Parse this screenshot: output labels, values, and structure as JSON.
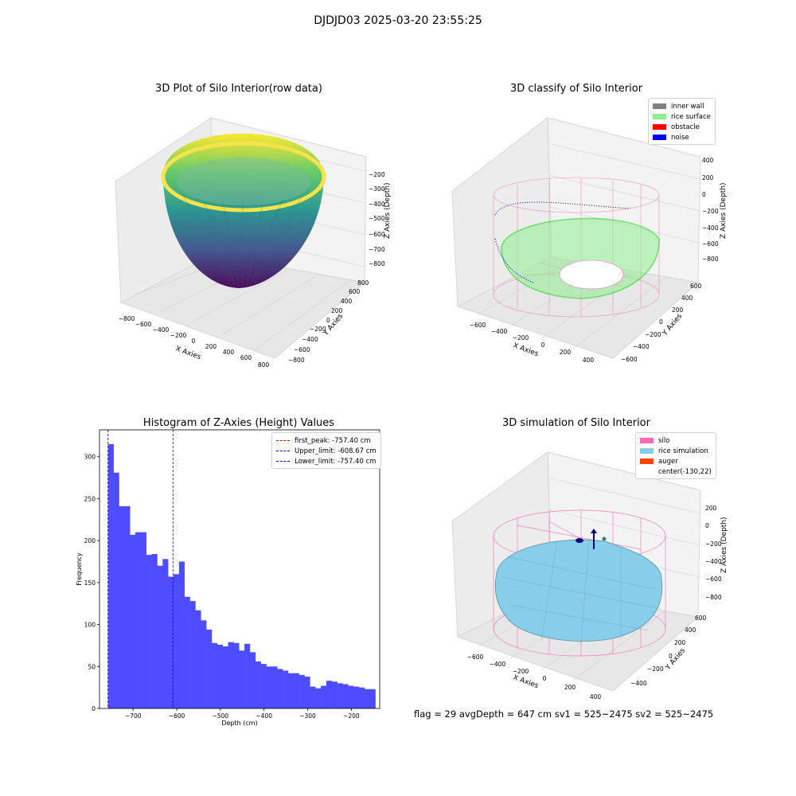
{
  "suptitle": "DJDJD03 2025-03-20 23:55:25",
  "colors": {
    "inner_wall": "#808080",
    "rice_surface": "#90ee90",
    "obstacle": "#ff0000",
    "noise": "#0000ff",
    "silo": "#ff69b4",
    "rice_simulation": "#87ceeb",
    "auger": "#ff4500",
    "histogram_bar": "#4d4dff",
    "first_peak_line": "#ff0000",
    "limit_line": "#0000ff"
  },
  "panels": {
    "raw": {
      "title": "3D Plot of Silo Interior(row data)",
      "x_label": "X Axies",
      "y_label": "Y Axies",
      "z_label": "Z Axies (Depth)",
      "x_ticks": [
        "−800",
        "−600",
        "−400",
        "−200",
        "0",
        "200",
        "400",
        "600",
        "800"
      ],
      "y_ticks": [
        "−800",
        "−600",
        "−400",
        "−200",
        "0",
        "200",
        "400",
        "600",
        "800"
      ],
      "z_ticks": [
        "−200",
        "−300",
        "−400",
        "−500",
        "−600",
        "−700",
        "−800"
      ]
    },
    "classify": {
      "title": "3D classify of Silo Interior",
      "x_label": "X Axies",
      "y_label": "Y Axies",
      "z_label": "Z Axies (Depth)",
      "x_ticks": [
        "−600",
        "−400",
        "−200",
        "0",
        "200",
        "400"
      ],
      "y_ticks": [
        "−600",
        "−400",
        "−200",
        "0",
        "200",
        "400",
        "600"
      ],
      "z_ticks": [
        "400",
        "200",
        "0",
        "−200",
        "−400",
        "−600",
        "−800"
      ],
      "legend": [
        "inner wall",
        "rice surface",
        "obstacle",
        "noise"
      ]
    },
    "histogram": {
      "title": "Histogram of Z-Axies (Height) Values",
      "x_label": "Depth (cm)",
      "y_label": "Frequency",
      "x_ticks": [
        "−700",
        "−600",
        "−500",
        "−400",
        "−300",
        "−200"
      ],
      "y_ticks": [
        "0",
        "50",
        "100",
        "150",
        "200",
        "250",
        "300"
      ],
      "legend": [
        "first_peak: -757.40 cm",
        "Upper_limit: -608.67 cm",
        "Lower_limit: -757.40 cm"
      ]
    },
    "simulation": {
      "title": "3D simulation of Silo Interior",
      "x_label": "X Axies",
      "y_label": "Y Axies",
      "z_label": "Z Axies (Depth)",
      "x_ticks": [
        "−600",
        "−400",
        "−200",
        "0",
        "200",
        "400"
      ],
      "y_ticks": [
        "−400",
        "−200",
        "0",
        "200",
        "400",
        "600"
      ],
      "z_ticks": [
        "200",
        "0",
        "−200",
        "−400",
        "−600",
        "−800"
      ],
      "legend": [
        "silo",
        "rice simulation",
        "auger",
        "center(-130,22)"
      ]
    }
  },
  "status_text": "flag = 29  avgDepth = 647 cm  sv1 = 525~2475  sv2 = 525~2475",
  "chart_data": [
    {
      "type": "scatter",
      "name": "raw-3d",
      "title": "3D Plot of Silo Interior(row data)",
      "xlabel": "X Axies",
      "ylabel": "Y Axies",
      "zlabel": "Z Axies (Depth)",
      "xlim": [
        -800,
        800
      ],
      "ylim": [
        -800,
        800
      ],
      "zlim": [
        -850,
        -150
      ],
      "colormap": "viridis"
    },
    {
      "type": "scatter",
      "name": "classify-3d",
      "title": "3D classify of Silo Interior",
      "xlabel": "X Axies",
      "ylabel": "Y Axies",
      "zlabel": "Z Axies (Depth)",
      "xlim": [
        -700,
        500
      ],
      "ylim": [
        -600,
        700
      ],
      "zlim": [
        -900,
        400
      ],
      "legend": [
        "inner wall",
        "rice surface",
        "obstacle",
        "noise"
      ],
      "legend_position": "top-right"
    },
    {
      "type": "bar",
      "name": "depth-histogram",
      "title": "Histogram of Z-Axies (Height) Values",
      "xlabel": "Depth (cm)",
      "ylabel": "Frequency",
      "xlim": [
        -777,
        -135
      ],
      "ylim": [
        0,
        332
      ],
      "bin_start": -757.4,
      "bin_width": 12.5,
      "values": [
        315,
        281,
        241,
        241,
        207,
        210,
        210,
        183,
        184,
        170,
        178,
        157,
        160,
        175,
        133,
        128,
        117,
        105,
        94,
        78,
        76,
        74,
        79,
        78,
        69,
        77,
        67,
        56,
        53,
        50,
        50,
        47,
        45,
        42,
        42,
        40,
        38,
        26,
        24,
        27,
        33,
        32,
        30,
        29,
        27,
        26,
        25,
        23,
        23
      ],
      "vlines": [
        {
          "label": "first_peak: -757.40 cm",
          "x": -757.4,
          "color": "red",
          "style": "dashed"
        },
        {
          "label": "Upper_limit: -608.67 cm",
          "x": -608.67,
          "color": "blue",
          "style": "dashed"
        },
        {
          "label": "Lower_limit: -757.40 cm",
          "x": -757.4,
          "color": "blue",
          "style": "dashed"
        }
      ],
      "legend_position": "top-right"
    },
    {
      "type": "scatter",
      "name": "simulation-3d",
      "title": "3D simulation of Silo Interior",
      "xlabel": "X Axies",
      "ylabel": "Y Axies",
      "zlabel": "Z Axies (Depth)",
      "xlim": [
        -700,
        500
      ],
      "ylim": [
        -500,
        700
      ],
      "zlim": [
        -900,
        300
      ],
      "legend": [
        "silo",
        "rice simulation",
        "auger",
        "center(-130,22)"
      ],
      "legend_position": "top-right"
    }
  ]
}
